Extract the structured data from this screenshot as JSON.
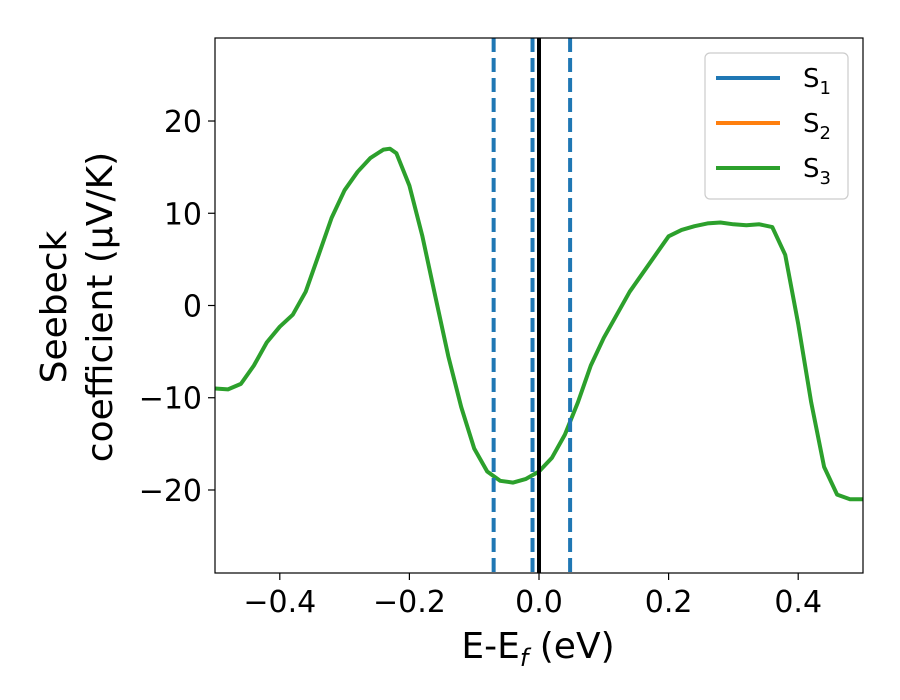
{
  "chart_data": {
    "type": "line",
    "xlabel": "E-E",
    "xlabel_sub": "f",
    "xlabel_unit": " (eV)",
    "ylabel_line1": "Seebeck",
    "ylabel_line2": "coefficient  (μV/K)",
    "xlim": [
      -0.5,
      0.5
    ],
    "ylim": [
      -29,
      29
    ],
    "xticks": [
      -0.4,
      -0.2,
      0.0,
      0.2,
      0.4
    ],
    "xtick_labels": [
      "−0.4",
      "−0.2",
      "0.0",
      "0.2",
      "0.4"
    ],
    "yticks": [
      20,
      10,
      0,
      -10,
      -20
    ],
    "ytick_labels": [
      "20",
      "10",
      "0",
      "−10",
      "−20"
    ],
    "grid": false,
    "legend_position": "top-right",
    "series": [
      {
        "name": "S",
        "sub": "1",
        "color": "#1f77b4",
        "style": "solid"
      },
      {
        "name": "S",
        "sub": "2",
        "color": "#ff7f0e",
        "style": "solid"
      },
      {
        "name": "S",
        "sub": "3",
        "color": "#2ca02c",
        "style": "solid",
        "x": [
          -0.5,
          -0.48,
          -0.46,
          -0.44,
          -0.42,
          -0.4,
          -0.38,
          -0.36,
          -0.34,
          -0.32,
          -0.3,
          -0.28,
          -0.26,
          -0.24,
          -0.23,
          -0.22,
          -0.2,
          -0.18,
          -0.16,
          -0.14,
          -0.12,
          -0.1,
          -0.08,
          -0.06,
          -0.04,
          -0.02,
          0.0,
          0.02,
          0.04,
          0.06,
          0.08,
          0.1,
          0.12,
          0.14,
          0.16,
          0.18,
          0.2,
          0.22,
          0.24,
          0.26,
          0.28,
          0.3,
          0.32,
          0.34,
          0.36,
          0.38,
          0.4,
          0.42,
          0.44,
          0.46,
          0.48,
          0.49,
          0.5
        ],
        "y": [
          -9.0,
          -9.1,
          -8.5,
          -6.5,
          -4.0,
          -2.3,
          -1.0,
          1.5,
          5.5,
          9.5,
          12.5,
          14.5,
          16.0,
          16.9,
          17.0,
          16.5,
          13.0,
          7.5,
          1.0,
          -5.5,
          -11.0,
          -15.5,
          -18.0,
          -19.0,
          -19.2,
          -18.8,
          -18.0,
          -16.5,
          -14.0,
          -10.5,
          -6.5,
          -3.5,
          -1.0,
          1.5,
          3.5,
          5.5,
          7.5,
          8.2,
          8.6,
          8.9,
          9.0,
          8.8,
          8.7,
          8.8,
          8.5,
          5.5,
          -2.0,
          -10.5,
          -17.5,
          -20.5,
          -21.0,
          -21.0,
          -21.0
        ]
      }
    ],
    "vlines": [
      {
        "x": -0.07,
        "color": "#1f77b4",
        "style": "dashed"
      },
      {
        "x": -0.01,
        "color": "#1f77b4",
        "style": "dashed"
      },
      {
        "x": 0.0,
        "color": "#000000",
        "style": "solid"
      },
      {
        "x": 0.048,
        "color": "#1f77b4",
        "style": "dashed"
      }
    ]
  }
}
